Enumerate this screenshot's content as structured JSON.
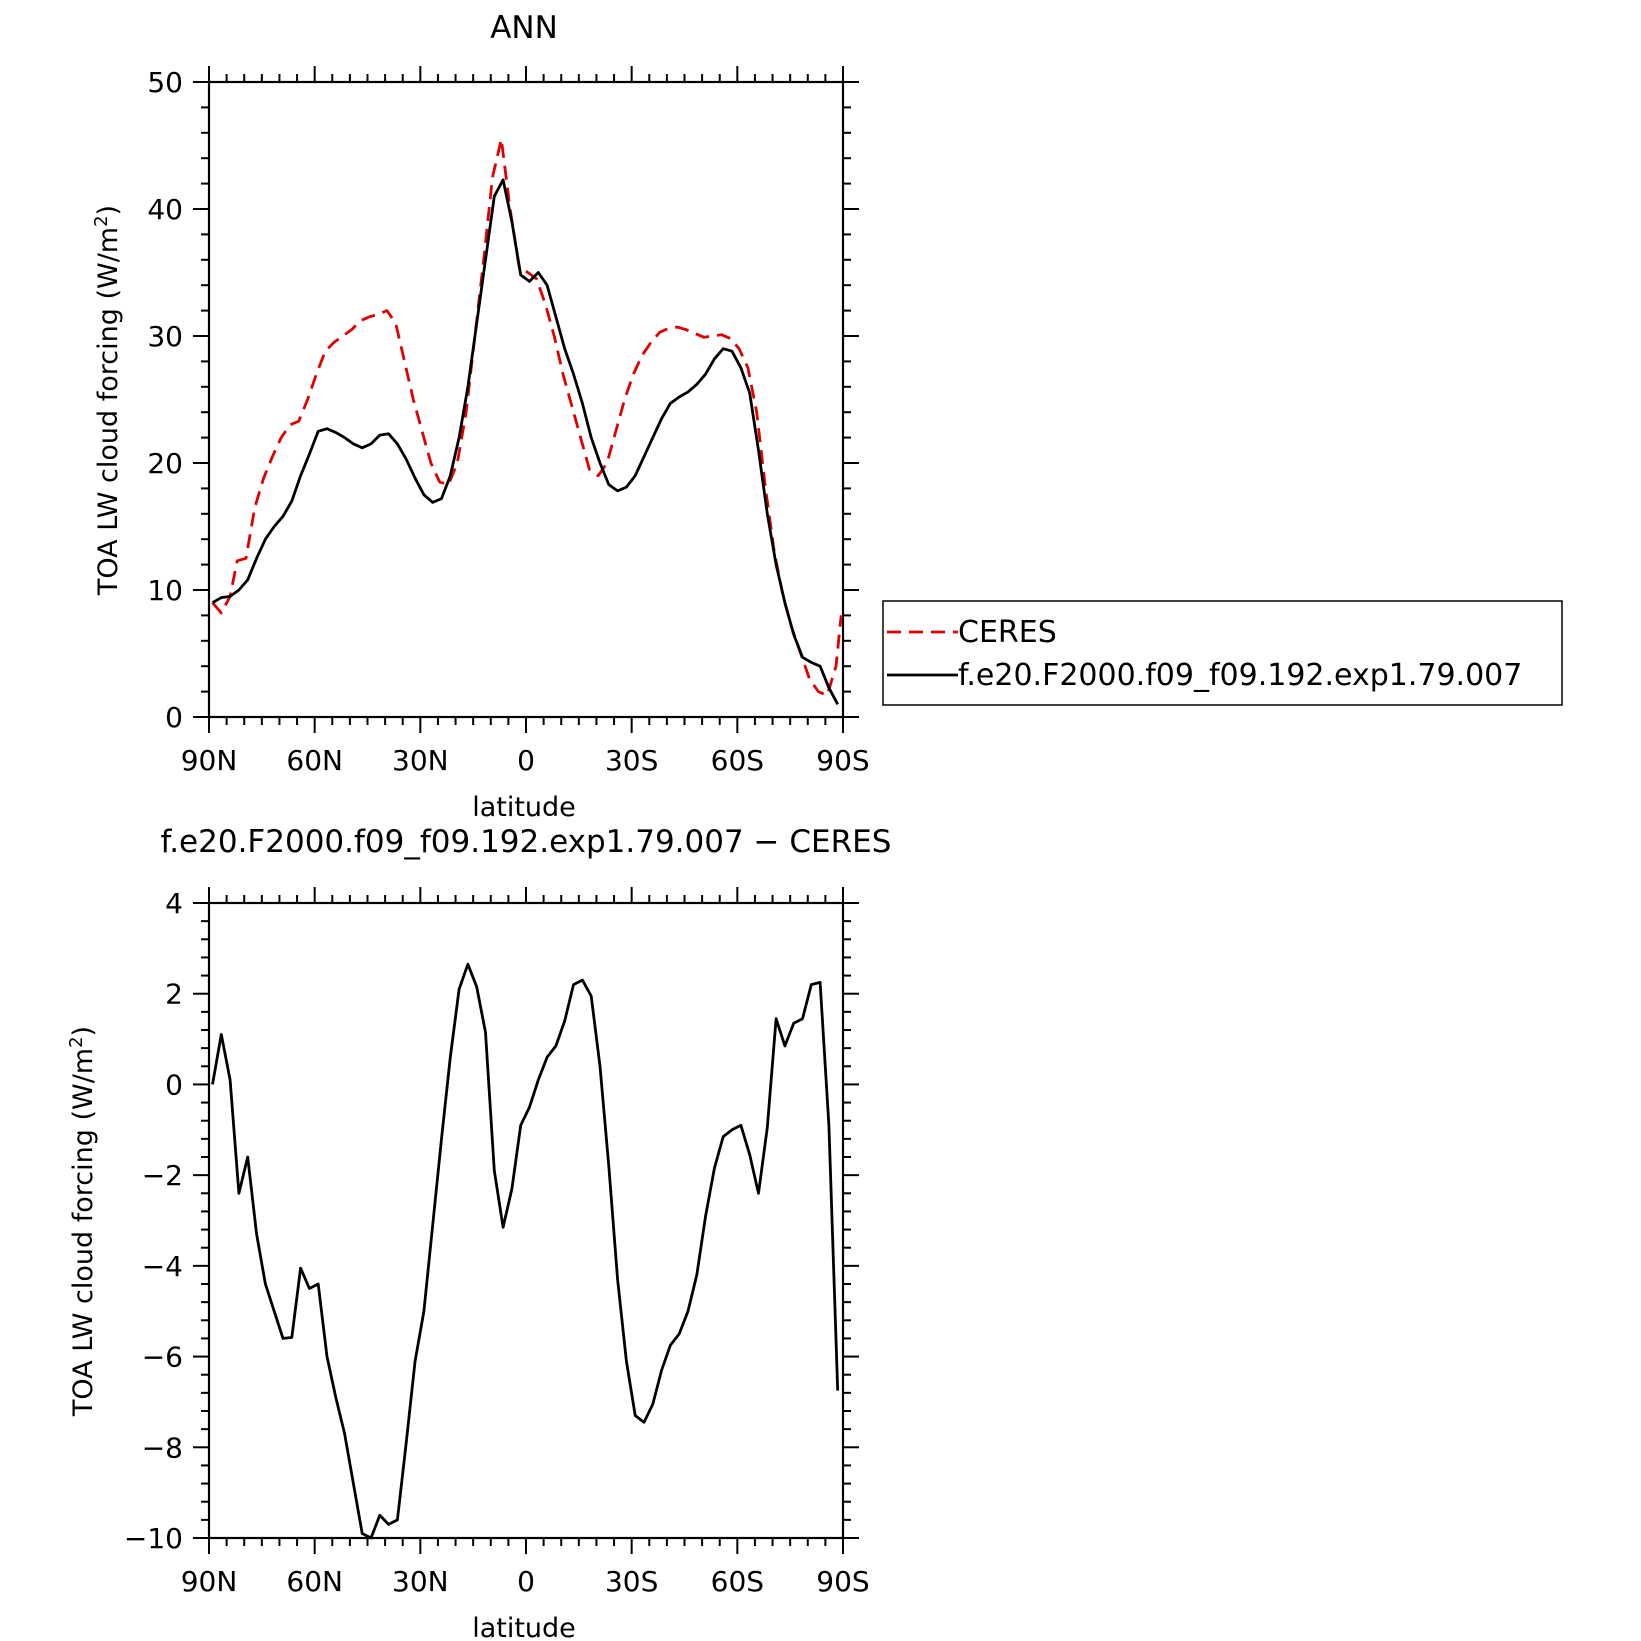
{
  "chart_data": [
    {
      "type": "line",
      "title": "ANN",
      "xlabel": "latitude",
      "ylabel": "TOA LW cloud forcing (W/m",
      "ylabel_sup": "2",
      "ylabel_tail": ")",
      "xlim": [
        90,
        -90
      ],
      "ylim": [
        0,
        50
      ],
      "xticks": [
        90,
        60,
        30,
        0,
        -30,
        -60,
        -90
      ],
      "xtick_labels": [
        "90N",
        "60N",
        "30N",
        "0",
        "30S",
        "60S",
        "90S"
      ],
      "yticks": [
        0,
        10,
        20,
        30,
        40,
        50
      ],
      "ytick_labels": [
        "0",
        "10",
        "20",
        "30",
        "40",
        "50"
      ],
      "legend_position": "right",
      "series": [
        {
          "name": "CERES",
          "color": "#e00000",
          "dash": "dashed",
          "points": [
            [
              89,
              9.0
            ],
            [
              86.5,
              8.2
            ],
            [
              84,
              9.5
            ],
            [
              82,
              12.3
            ],
            [
              79.5,
              12.5
            ],
            [
              77,
              16.5
            ],
            [
              74.5,
              18.8
            ],
            [
              72,
              20.5
            ],
            [
              69.5,
              22
            ],
            [
              67,
              23
            ],
            [
              64.5,
              23.3
            ],
            [
              62,
              25
            ],
            [
              59.5,
              27
            ],
            [
              57,
              28.8
            ],
            [
              54.5,
              29.5
            ],
            [
              52,
              30
            ],
            [
              49.5,
              30.5
            ],
            [
              47,
              31.2
            ],
            [
              44.5,
              31.5
            ],
            [
              42,
              31.7
            ],
            [
              39.5,
              32
            ],
            [
              37,
              31
            ],
            [
              34.5,
              28
            ],
            [
              32,
              25
            ],
            [
              29.5,
              22.5
            ],
            [
              27,
              20
            ],
            [
              24.5,
              18.5
            ],
            [
              22,
              18.3
            ],
            [
              19.5,
              20
            ],
            [
              17,
              24
            ],
            [
              14.5,
              30
            ],
            [
              12,
              36
            ],
            [
              9.5,
              42.5
            ],
            [
              7,
              45.5
            ],
            [
              4.5,
              40
            ],
            [
              2,
              35.5
            ],
            [
              -0.5,
              35
            ],
            [
              -3,
              34.5
            ],
            [
              -5.5,
              32.5
            ],
            [
              -8,
              30
            ],
            [
              -10.5,
              27
            ],
            [
              -13,
              24.5
            ],
            [
              -15.5,
              22
            ],
            [
              -18,
              19.5
            ],
            [
              -20.5,
              19
            ],
            [
              -23,
              20
            ],
            [
              -25.5,
              22.5
            ],
            [
              -28,
              25
            ],
            [
              -30.5,
              27
            ],
            [
              -33,
              28.5
            ],
            [
              -35.5,
              29.5
            ],
            [
              -38,
              30.3
            ],
            [
              -40.5,
              30.6
            ],
            [
              -43,
              30.7
            ],
            [
              -45.5,
              30.5
            ],
            [
              -48,
              30.2
            ],
            [
              -50.5,
              29.9
            ],
            [
              -53,
              30
            ],
            [
              -55.5,
              30.1
            ],
            [
              -58,
              29.8
            ],
            [
              -60.5,
              29
            ],
            [
              -63,
              27.5
            ],
            [
              -65.5,
              24
            ],
            [
              -68,
              18
            ],
            [
              -70.5,
              13
            ],
            [
              -73,
              9.5
            ],
            [
              -75.5,
              7
            ],
            [
              -78,
              5
            ],
            [
              -80.5,
              3
            ],
            [
              -83,
              2
            ],
            [
              -85.5,
              1.7
            ],
            [
              -88,
              4
            ],
            [
              -89.5,
              8
            ]
          ]
        },
        {
          "name": "f.e20.F2000.f09_f09.192.exp1.79.007",
          "color": "#000000",
          "dash": "solid",
          "points": [
            [
              89,
              9.0
            ],
            [
              86.5,
              9.4
            ],
            [
              84,
              9.5
            ],
            [
              81.5,
              10.0
            ],
            [
              79,
              10.8
            ],
            [
              76.5,
              12.5
            ],
            [
              74,
              14.0
            ],
            [
              71.5,
              15.0
            ],
            [
              69,
              15.8
            ],
            [
              66.5,
              17.0
            ],
            [
              64,
              19.0
            ],
            [
              61.5,
              20.7
            ],
            [
              59,
              22.5
            ],
            [
              56.5,
              22.7
            ],
            [
              54,
              22.4
            ],
            [
              51.5,
              22.0
            ],
            [
              49,
              21.5
            ],
            [
              46.5,
              21.2
            ],
            [
              44,
              21.5
            ],
            [
              41.5,
              22.2
            ],
            [
              39,
              22.3
            ],
            [
              36.5,
              21.5
            ],
            [
              34,
              20.3
            ],
            [
              31.5,
              18.8
            ],
            [
              29,
              17.5
            ],
            [
              26.5,
              16.9
            ],
            [
              24,
              17.2
            ],
            [
              21.5,
              19.0
            ],
            [
              19,
              22.0
            ],
            [
              16.5,
              26.0
            ],
            [
              14,
              31.0
            ],
            [
              11.5,
              36.0
            ],
            [
              9,
              41.0
            ],
            [
              6.5,
              42.3
            ],
            [
              4,
              39.0
            ],
            [
              1.5,
              34.8
            ],
            [
              -1,
              34.3
            ],
            [
              -3.5,
              35.0
            ],
            [
              -6,
              34.0
            ],
            [
              -8.5,
              31.5
            ],
            [
              -11,
              29.0
            ],
            [
              -13.5,
              27.0
            ],
            [
              -16,
              24.7
            ],
            [
              -18.5,
              22.0
            ],
            [
              -21,
              20.0
            ],
            [
              -23.5,
              18.3
            ],
            [
              -26,
              17.8
            ],
            [
              -28.5,
              18.1
            ],
            [
              -31,
              19.0
            ],
            [
              -33.5,
              20.5
            ],
            [
              -36,
              22.0
            ],
            [
              -38.5,
              23.5
            ],
            [
              -41,
              24.7
            ],
            [
              -43.5,
              25.2
            ],
            [
              -46,
              25.6
            ],
            [
              -48.5,
              26.2
            ],
            [
              -51,
              27.0
            ],
            [
              -53.5,
              28.2
            ],
            [
              -56,
              29.0
            ],
            [
              -58.5,
              28.8
            ],
            [
              -61,
              27.5
            ],
            [
              -63.5,
              25.5
            ],
            [
              -66,
              21.0
            ],
            [
              -68.5,
              16.0
            ],
            [
              -71,
              12.0
            ],
            [
              -73.5,
              9.0
            ],
            [
              -76,
              6.5
            ],
            [
              -78.5,
              4.7
            ],
            [
              -81,
              4.3
            ],
            [
              -83.5,
              4.0
            ],
            [
              -86,
              2.3
            ],
            [
              -88.5,
              1.0
            ]
          ]
        }
      ]
    },
    {
      "type": "line",
      "title": "f.e20.F2000.f09_f09.192.exp1.79.007 − CERES",
      "xlabel": "latitude",
      "ylabel": "TOA LW cloud forcing (W/m",
      "ylabel_sup": "2",
      "ylabel_tail": ")",
      "xlim": [
        90,
        -90
      ],
      "ylim": [
        -10,
        4
      ],
      "xticks": [
        90,
        60,
        30,
        0,
        -30,
        -60,
        -90
      ],
      "xtick_labels": [
        "90N",
        "60N",
        "30N",
        "0",
        "30S",
        "60S",
        "90S"
      ],
      "yticks": [
        -10,
        -8,
        -6,
        -4,
        -2,
        0,
        2,
        4
      ],
      "ytick_labels": [
        "−10",
        "−8",
        "−6",
        "−4",
        "−2",
        "0",
        "2",
        "4"
      ],
      "series": [
        {
          "color": "#000000",
          "dash": "solid",
          "points": [
            [
              89,
              0.0
            ],
            [
              86.5,
              1.1
            ],
            [
              84,
              0.1
            ],
            [
              81.5,
              -2.4
            ],
            [
              79,
              -1.6
            ],
            [
              76.5,
              -3.3
            ],
            [
              74,
              -4.4
            ],
            [
              71.5,
              -5.0
            ],
            [
              69,
              -5.6
            ],
            [
              66.5,
              -5.58
            ],
            [
              64,
              -4.05
            ],
            [
              61.5,
              -4.5
            ],
            [
              59,
              -4.4
            ],
            [
              56.5,
              -6.0
            ],
            [
              54,
              -6.9
            ],
            [
              51.5,
              -7.7
            ],
            [
              49,
              -8.8
            ],
            [
              46.5,
              -9.9
            ],
            [
              44,
              -10.0
            ],
            [
              41.5,
              -9.5
            ],
            [
              39,
              -9.7
            ],
            [
              36.5,
              -9.6
            ],
            [
              34,
              -7.9
            ],
            [
              31.5,
              -6.1
            ],
            [
              29,
              -5.0
            ],
            [
              26.5,
              -3.1
            ],
            [
              24,
              -1.2
            ],
            [
              21.5,
              0.6
            ],
            [
              19,
              2.1
            ],
            [
              16.5,
              2.65
            ],
            [
              14,
              2.15
            ],
            [
              11.5,
              1.15
            ],
            [
              9,
              -1.9
            ],
            [
              6.5,
              -3.15
            ],
            [
              4,
              -2.3
            ],
            [
              1.5,
              -0.9
            ],
            [
              -1,
              -0.5
            ],
            [
              -3.5,
              0.1
            ],
            [
              -6,
              0.6
            ],
            [
              -8.5,
              0.85
            ],
            [
              -11,
              1.4
            ],
            [
              -13.5,
              2.2
            ],
            [
              -16,
              2.3
            ],
            [
              -18.5,
              1.95
            ],
            [
              -21,
              0.4
            ],
            [
              -23.5,
              -1.8
            ],
            [
              -26,
              -4.3
            ],
            [
              -28.5,
              -6.1
            ],
            [
              -31,
              -7.3
            ],
            [
              -33.5,
              -7.45
            ],
            [
              -36,
              -7.05
            ],
            [
              -38.5,
              -6.3
            ],
            [
              -41,
              -5.75
            ],
            [
              -43.5,
              -5.5
            ],
            [
              -46,
              -5.0
            ],
            [
              -48.5,
              -4.2
            ],
            [
              -51,
              -2.9
            ],
            [
              -53.5,
              -1.85
            ],
            [
              -56,
              -1.15
            ],
            [
              -58.5,
              -1.0
            ],
            [
              -61,
              -0.9
            ],
            [
              -63.5,
              -1.55
            ],
            [
              -66,
              -2.4
            ],
            [
              -68.5,
              -0.95
            ],
            [
              -71,
              1.45
            ],
            [
              -73.5,
              0.85
            ],
            [
              -76,
              1.35
            ],
            [
              -78.5,
              1.45
            ],
            [
              -81,
              2.2
            ],
            [
              -83.5,
              2.25
            ],
            [
              -86,
              -0.9
            ],
            [
              -88.5,
              -6.75
            ]
          ]
        }
      ]
    }
  ]
}
